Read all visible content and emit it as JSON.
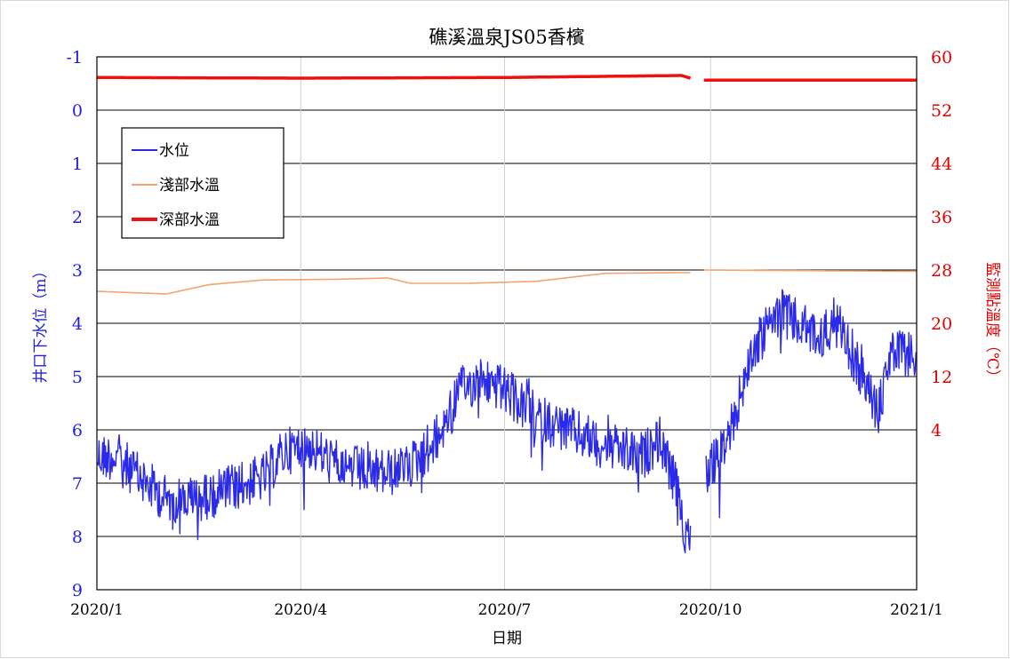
{
  "chart_data": {
    "type": "line",
    "title": "礁溪溫泉JS05香檳",
    "xlabel": "日期",
    "ylabel_left": "井口下水位（m）",
    "ylabel_right": "監測點溫度（℃）",
    "x_ticks": [
      "2020/1",
      "2020/4",
      "2020/7",
      "2020/10",
      "2021/1"
    ],
    "x_range": [
      "2020-01-01",
      "2021-01-01"
    ],
    "y_left_range": [
      -1,
      9
    ],
    "y_left_inverted": true,
    "y_left_ticks": [
      "-1",
      "0",
      "1",
      "2",
      "3",
      "4",
      "5",
      "6",
      "7",
      "8",
      "9"
    ],
    "y_right_range": [
      -20,
      60
    ],
    "y_right_ticks": [
      "60",
      "52",
      "44",
      "36",
      "28",
      "20",
      "12",
      "4"
    ],
    "grid": "horizontal major + vertical at month ticks",
    "legend_position": "upper-left",
    "series": [
      {
        "name": "水位",
        "axis": "left",
        "color": "#2a2ae8",
        "noisy": true,
        "points": [
          [
            "2020-01-01",
            6.5
          ],
          [
            "2020-01-10",
            6.5
          ],
          [
            "2020-01-20",
            6.9
          ],
          [
            "2020-02-01",
            7.3
          ],
          [
            "2020-02-15",
            7.3
          ],
          [
            "2020-03-01",
            7.1
          ],
          [
            "2020-03-15",
            6.9
          ],
          [
            "2020-03-25",
            6.4
          ],
          [
            "2020-04-05",
            6.3
          ],
          [
            "2020-04-15",
            6.6
          ],
          [
            "2020-05-01",
            6.8
          ],
          [
            "2020-05-15",
            6.8
          ],
          [
            "2020-05-25",
            6.5
          ],
          [
            "2020-06-02",
            6.1
          ],
          [
            "2020-06-10",
            5.3
          ],
          [
            "2020-06-20",
            5.05
          ],
          [
            "2020-07-01",
            5.25
          ],
          [
            "2020-07-10",
            5.6
          ],
          [
            "2020-07-20",
            5.85
          ],
          [
            "2020-08-01",
            6.05
          ],
          [
            "2020-08-15",
            6.3
          ],
          [
            "2020-09-01",
            6.5
          ],
          [
            "2020-09-08",
            6.15
          ],
          [
            "2020-09-15",
            7.0
          ],
          [
            "2020-09-20",
            7.95
          ],
          [
            "2020-09-22",
            7.8
          ],
          null,
          [
            "2020-09-29",
            6.8
          ],
          [
            "2020-10-05",
            6.5
          ],
          [
            "2020-10-10",
            6.0
          ],
          [
            "2020-10-20",
            4.5
          ],
          [
            "2020-11-01",
            3.75
          ],
          [
            "2020-11-10",
            4.05
          ],
          [
            "2020-11-20",
            4.3
          ],
          [
            "2020-11-25",
            3.9
          ],
          [
            "2020-12-01",
            4.4
          ],
          [
            "2020-12-10",
            5.2
          ],
          [
            "2020-12-15",
            5.7
          ],
          [
            "2020-12-20",
            4.6
          ],
          [
            "2021-01-01",
            4.55
          ]
        ]
      },
      {
        "name": "淺部水溫",
        "axis": "right",
        "color": "#f4a46a",
        "noisy": false,
        "points": [
          [
            "2020-01-01",
            24.8
          ],
          [
            "2020-02-01",
            24.4
          ],
          [
            "2020-02-20",
            25.8
          ],
          [
            "2020-03-15",
            26.5
          ],
          [
            "2020-04-15",
            26.6
          ],
          [
            "2020-05-10",
            26.8
          ],
          [
            "2020-05-20",
            26.0
          ],
          [
            "2020-06-15",
            26.0
          ],
          [
            "2020-07-15",
            26.3
          ],
          [
            "2020-08-15",
            27.5
          ],
          [
            "2020-09-18",
            27.6
          ],
          [
            "2020-09-22",
            27.6
          ],
          null,
          [
            "2020-09-28",
            28.0
          ],
          [
            "2021-01-01",
            27.8
          ]
        ]
      },
      {
        "name": "深部水溫",
        "axis": "right",
        "color": "#ee1111",
        "noisy": false,
        "points": [
          [
            "2020-01-01",
            56.9
          ],
          [
            "2020-04-01",
            56.8
          ],
          [
            "2020-07-01",
            56.9
          ],
          [
            "2020-09-18",
            57.2
          ],
          [
            "2020-09-22",
            56.8
          ],
          null,
          [
            "2020-09-28",
            56.5
          ],
          [
            "2021-01-01",
            56.5
          ]
        ]
      }
    ]
  }
}
